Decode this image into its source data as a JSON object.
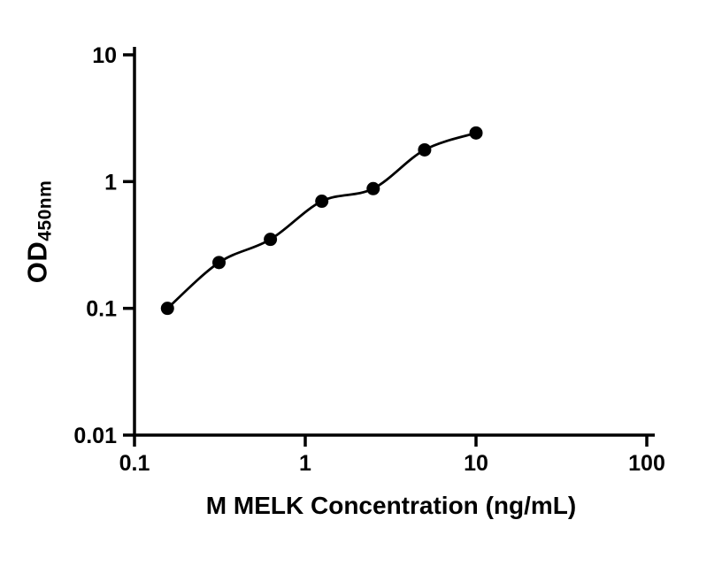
{
  "chart_data": {
    "type": "scatter",
    "xlabel": "M MELK Concentration (ng/mL)",
    "ylabel_main": "OD",
    "ylabel_sub": "450nm",
    "x_scale": "log",
    "y_scale": "log",
    "xlim": [
      0.1,
      100
    ],
    "ylim": [
      0.01,
      10
    ],
    "grid": false,
    "x_ticks": [
      {
        "value": 0.1,
        "label": "0.1"
      },
      {
        "value": 1,
        "label": "1"
      },
      {
        "value": 10,
        "label": "10"
      },
      {
        "value": 100,
        "label": "100"
      }
    ],
    "y_ticks": [
      {
        "value": 10,
        "label": "10"
      },
      {
        "value": 1,
        "label": "1"
      },
      {
        "value": 0.1,
        "label": "0.1"
      },
      {
        "value": 0.01,
        "label": "0.01"
      }
    ],
    "series": [
      {
        "name": "standard-curve",
        "marker": "circle",
        "color": "#000000",
        "line": "smooth-fit",
        "points": [
          {
            "x": 0.156,
            "y": 0.1
          },
          {
            "x": 0.3125,
            "y": 0.23
          },
          {
            "x": 0.625,
            "y": 0.35
          },
          {
            "x": 1.25,
            "y": 0.7
          },
          {
            "x": 2.5,
            "y": 0.88
          },
          {
            "x": 5,
            "y": 1.78
          },
          {
            "x": 10,
            "y": 2.42
          }
        ]
      }
    ]
  }
}
